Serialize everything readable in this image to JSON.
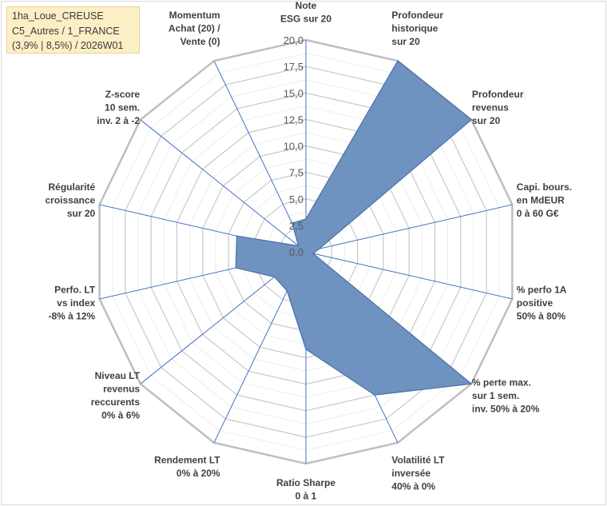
{
  "info_box": {
    "line1": "1ha_Loue_CREUSE",
    "line2": "C5_Autres / 1_FRANCE",
    "line3": "(3,9% | 8,5%) / 2026W01"
  },
  "colors": {
    "fill": "#6f93c1",
    "stroke": "#4a6fa5",
    "axis": "#4472c4",
    "ring_major": "#c8c8c8",
    "ring_outer": "#bfbfbf",
    "ring_minor": "#ededed"
  },
  "chart_data": {
    "type": "radar",
    "title": "",
    "rmin": 0,
    "rmax": 20,
    "major_step": 2.5,
    "minor_step": 1.25,
    "tick_labels": [
      "0,0",
      "2,5",
      "5,0",
      "7,5",
      "10,0",
      "12,5",
      "15,0",
      "17,5",
      "20,0"
    ],
    "axes": [
      [
        "Note",
        "ESG sur 20"
      ],
      [
        "Profondeur",
        "historique",
        "sur 20"
      ],
      [
        "Profondeur",
        "revenus",
        "sur 20"
      ],
      [
        "Capi. bours.",
        "en MdEUR",
        "0 à 60 G€"
      ],
      [
        "% perfo 1A",
        "positive",
        "50% à 80%"
      ],
      [
        "% perte max.",
        "sur 1 sem.",
        "inv. 50% à 20%"
      ],
      [
        "Volatilité LT",
        "inversée",
        "40% à 0%"
      ],
      [
        "Ratio Sharpe",
        "0 à 1"
      ],
      [
        "Rendement LT",
        "0% à 20%"
      ],
      [
        "Niveau LT",
        "revenus",
        "reccurents",
        "0% à 6%"
      ],
      [
        "Perfo. LT",
        "vs index",
        "-8% à 12%"
      ],
      [
        "Régularité",
        "croissance",
        "sur 20"
      ],
      [
        "Z-score",
        "10 sem.",
        "inv. 2 à -2"
      ],
      [
        "Momentum",
        "Achat (20) /",
        "Vente (0)"
      ]
    ],
    "values": [
      3.1,
      20.0,
      20.0,
      1.3,
      0.7,
      20.0,
      15.0,
      9.2,
      4.1,
      3.8,
      6.8,
      6.7,
      0.9,
      3.0
    ]
  }
}
